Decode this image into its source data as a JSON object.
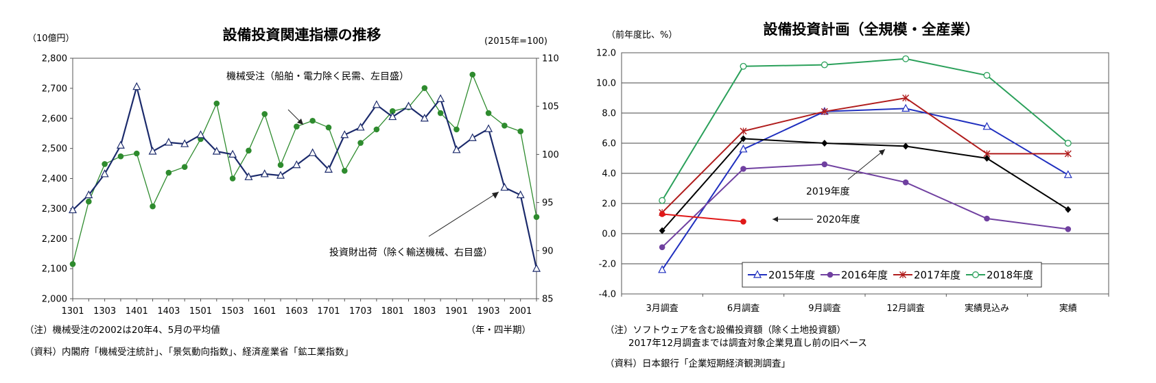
{
  "chart_data": [
    {
      "type": "line",
      "title": "設備投資関連指標の推移",
      "left_unit": "（10億円）",
      "right_unit": "(2015年=100)",
      "x_unit": "（年・四半期）",
      "x": [
        "1301",
        "1302",
        "1303",
        "1304",
        "1401",
        "1402",
        "1403",
        "1404",
        "1501",
        "1502",
        "1503",
        "1504",
        "1601",
        "1602",
        "1603",
        "1604",
        "1701",
        "1702",
        "1703",
        "1704",
        "1801",
        "1802",
        "1803",
        "1804",
        "1901",
        "1902",
        "1903",
        "1904",
        "2001",
        "2002"
      ],
      "x_tick_labels": [
        "1301",
        "1303",
        "1401",
        "1403",
        "1501",
        "1503",
        "1601",
        "1603",
        "1701",
        "1703",
        "1801",
        "1803",
        "1901",
        "1903",
        "2001"
      ],
      "ylim_left": [
        2000,
        2800
      ],
      "yticks_left": [
        "2,000",
        "2,100",
        "2,200",
        "2,300",
        "2,400",
        "2,500",
        "2,600",
        "2,700",
        "2,800"
      ],
      "ylim_right": [
        85,
        110
      ],
      "yticks_right": [
        "85",
        "90",
        "95",
        "100",
        "105",
        "110"
      ],
      "series": [
        {
          "name": "機械受注（船舶・電力除く民需、左目盛）",
          "axis": "left",
          "color": "#1b2a6b",
          "marker": "triangle-open",
          "values": [
            2295,
            2345,
            2415,
            2510,
            2705,
            2490,
            2520,
            2515,
            2545,
            2490,
            2480,
            2405,
            2415,
            2410,
            2445,
            2485,
            2430,
            2545,
            2570,
            2645,
            2605,
            2640,
            2600,
            2665,
            2495,
            2535,
            2565,
            2370,
            2345,
            2100
          ]
        },
        {
          "name": "投資財出荷（除く輸送機械、右目盛）",
          "axis": "right",
          "color": "#2e8b2e",
          "marker": "circle-filled",
          "values": [
            88.6,
            95.1,
            99.0,
            99.8,
            100.1,
            94.6,
            98.1,
            98.7,
            101.6,
            105.3,
            97.5,
            100.4,
            104.2,
            98.9,
            102.9,
            103.5,
            102.8,
            98.3,
            101.2,
            102.6,
            104.5,
            104.9,
            106.9,
            104.3,
            102.6,
            108.3,
            104.3,
            103.0,
            102.4,
            93.5
          ]
        }
      ],
      "annotations": [
        "機械受注（船舶・電力除く民需、左目盛）",
        "投資財出荷（除く輸送機械、右目盛）"
      ],
      "notes": [
        "（注）機械受注の2002は20年4、5月の平均値",
        "（資料）内閣府「機械受注統計」、「景気動向指数」、経済産業省「鉱工業指数」"
      ]
    },
    {
      "type": "line",
      "title": "設備投資計画（全規模・全産業）",
      "ylabel": "（前年度比、%）",
      "categories": [
        "3月調査",
        "6月調査",
        "9月調査",
        "12月調査",
        "実績見込み",
        "実績"
      ],
      "ylim": [
        -4.0,
        12.0
      ],
      "yticks": [
        "-4.0",
        "-2.0",
        "0.0",
        "2.0",
        "4.0",
        "6.0",
        "8.0",
        "10.0",
        "12.0"
      ],
      "grid": true,
      "legend_position": "bottom-center",
      "series": [
        {
          "name": "2015年度",
          "color": "#1f2fbf",
          "marker": "triangle-open",
          "values": [
            -2.4,
            5.6,
            8.1,
            8.3,
            7.1,
            3.9
          ]
        },
        {
          "name": "2016年度",
          "color": "#7040a0",
          "marker": "circle-filled",
          "values": [
            -0.9,
            4.3,
            4.6,
            3.4,
            1.0,
            0.3
          ]
        },
        {
          "name": "2017年度",
          "color": "#b01c1c",
          "marker": "star",
          "values": [
            1.4,
            6.8,
            8.1,
            9.0,
            5.3,
            5.3
          ]
        },
        {
          "name": "2018年度",
          "color": "#2aa05a",
          "marker": "circle-open",
          "values": [
            2.2,
            11.1,
            11.2,
            11.6,
            10.5,
            6.0
          ]
        },
        {
          "name": "2019年度",
          "color": "#000000",
          "marker": "diamond-filled",
          "values": [
            0.2,
            6.3,
            6.0,
            5.8,
            5.0,
            1.6
          ]
        },
        {
          "name": "2020年度",
          "color": "#e01818",
          "marker": "circle-filled",
          "values": [
            1.3,
            0.8,
            null,
            null,
            null,
            null
          ]
        }
      ],
      "annotations": [
        "2019年度",
        "2020年度"
      ],
      "notes": [
        "（注）ソフトウェアを含む設備投資額（除く土地投資額）",
        "2017年12月調査までは調査対象企業見直し前の旧ベース",
        "（資料）日本銀行「企業短期経済観測調査」"
      ]
    }
  ]
}
